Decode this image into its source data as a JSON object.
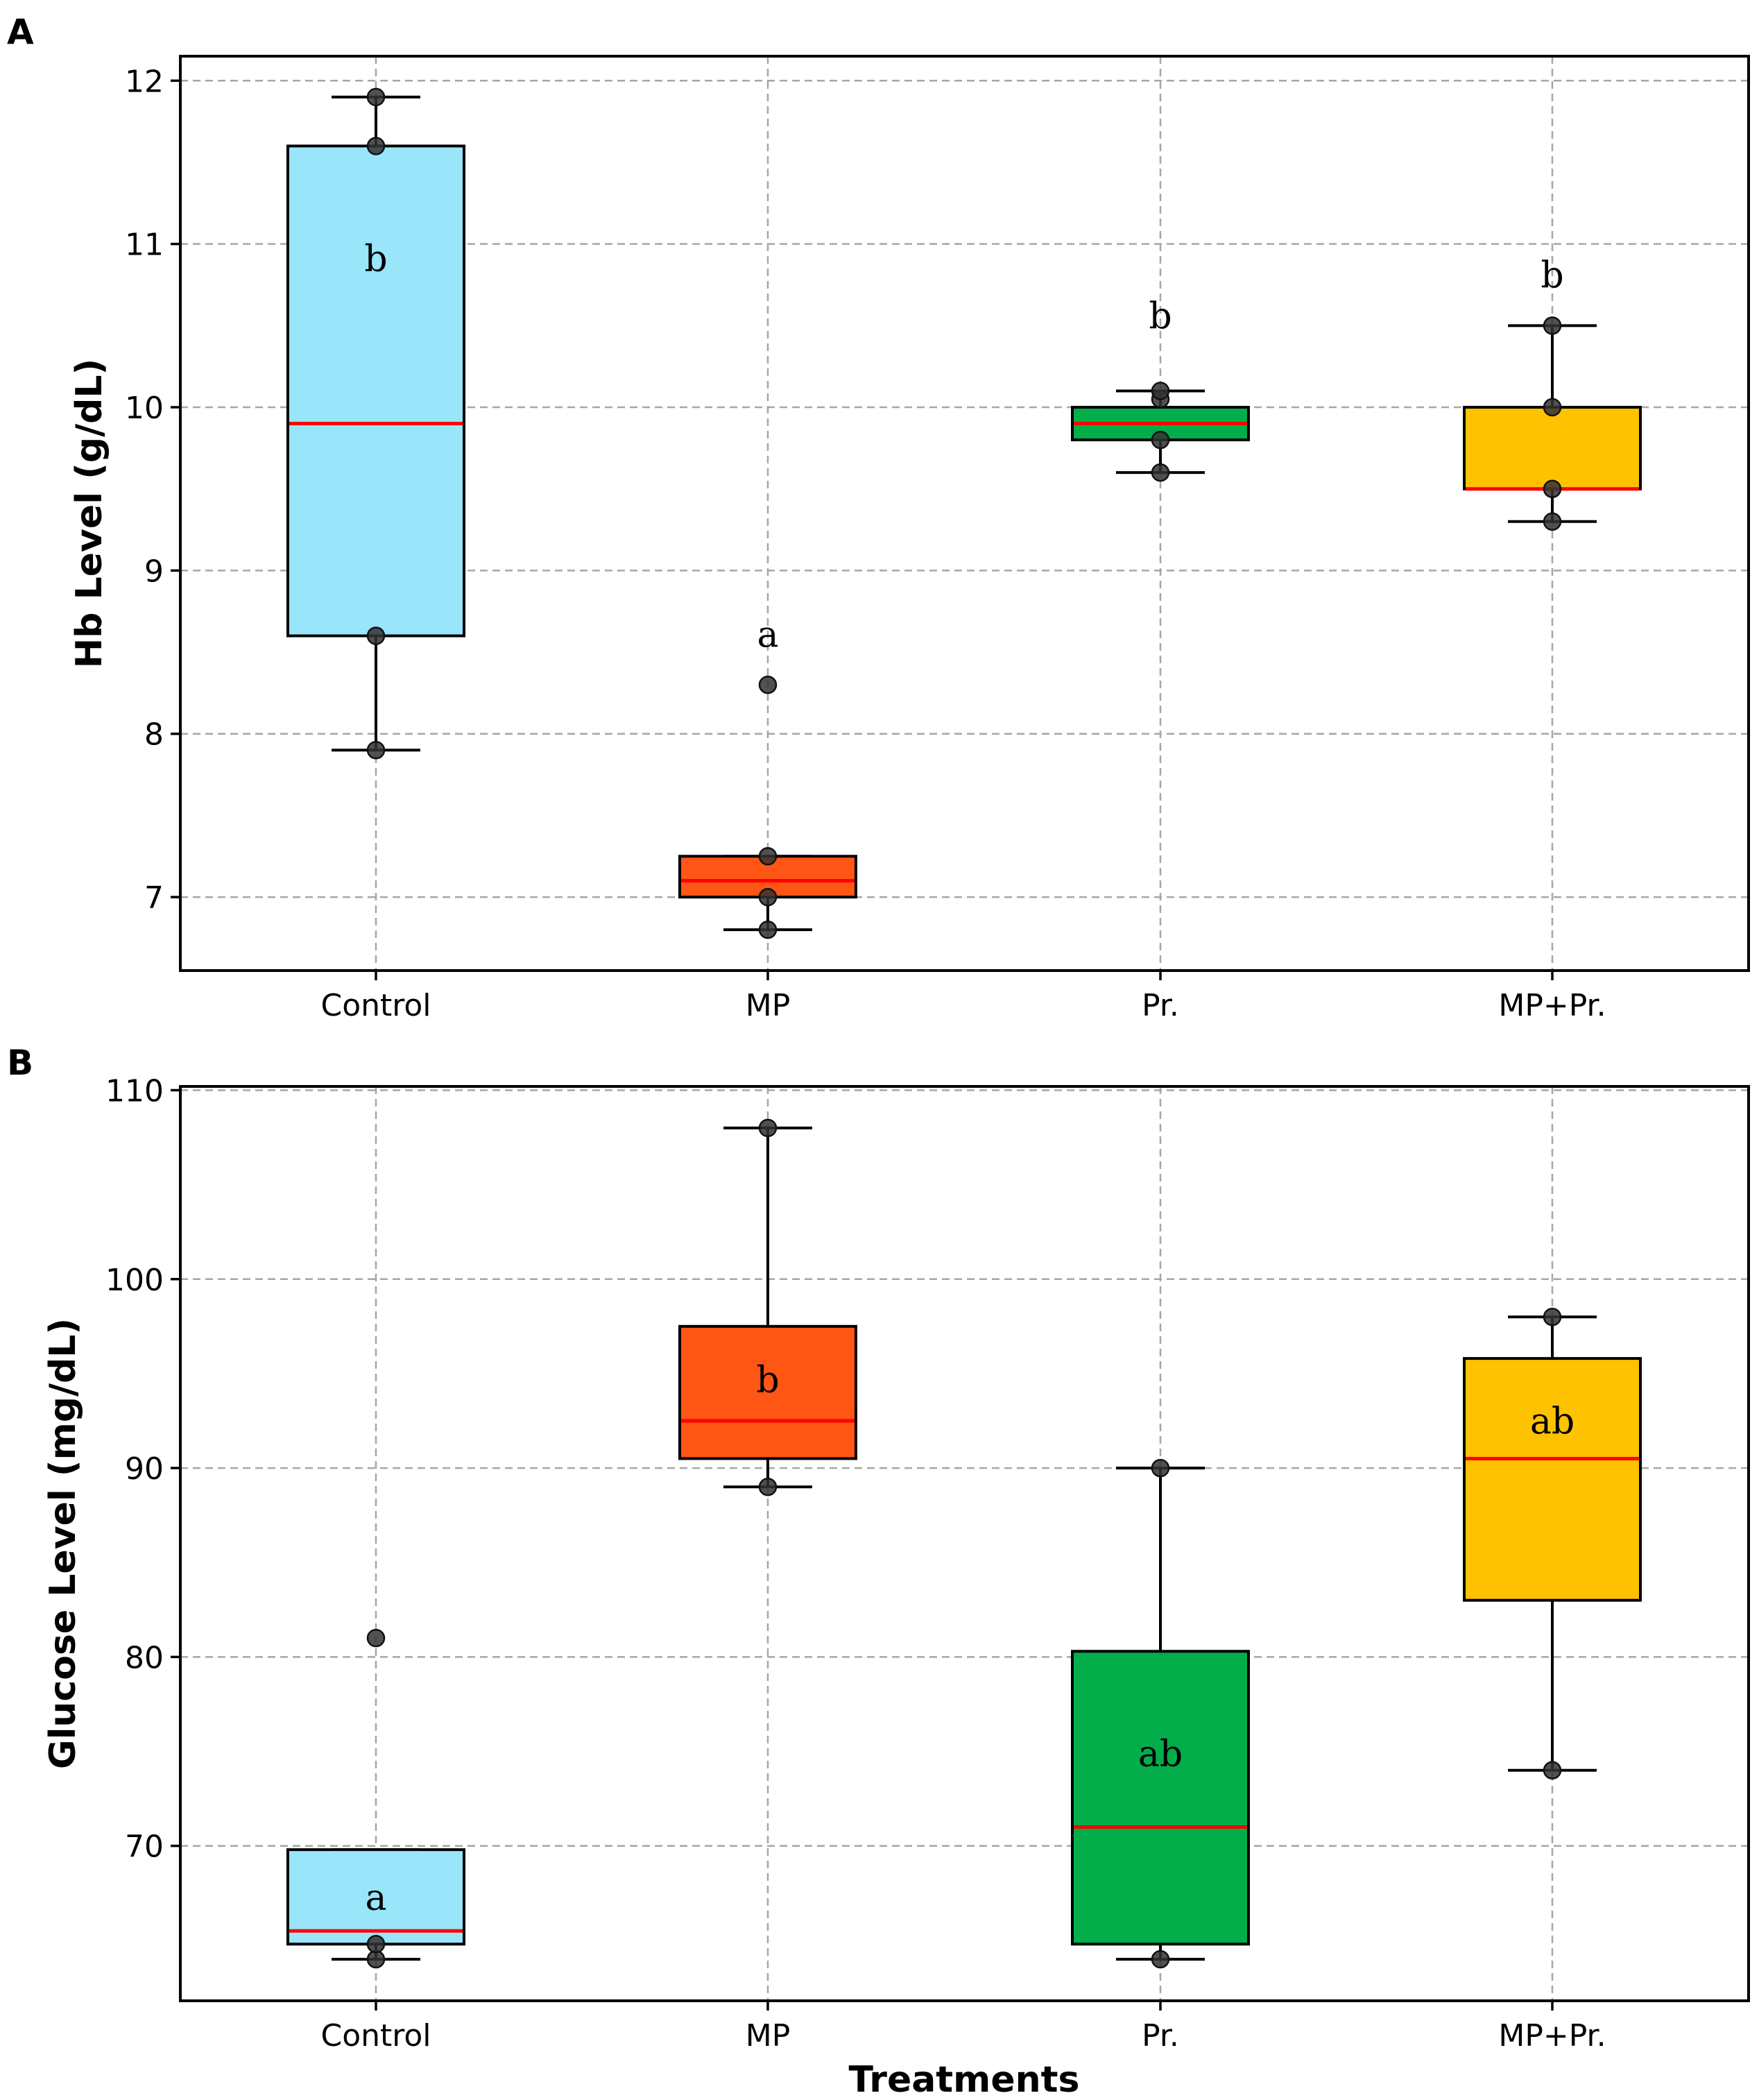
{
  "chart_data": [
    {
      "panel": "A",
      "type": "box",
      "ylabel": "Hb Level (g/dL)",
      "xlabel": "",
      "ylim": [
        6.55,
        12.15
      ],
      "yticks": [
        7,
        8,
        9,
        10,
        11,
        12
      ],
      "grid": true,
      "categories": [
        "Control",
        "MP",
        "Pr.",
        "MP+Pr."
      ],
      "boxes": [
        {
          "category": "Control",
          "color": "#99E5FA",
          "q1": 8.6,
          "median": 9.9,
          "q3": 11.6,
          "whisker_low": 7.9,
          "whisker_high": 11.9,
          "points": [
            7.9,
            8.6,
            11.6,
            11.9
          ],
          "outliers": [],
          "letter": "b",
          "letter_y": 10.9
        },
        {
          "category": "MP",
          "color": "#FF5515",
          "q1": 7.0,
          "median": 7.1,
          "q3": 7.25,
          "whisker_low": 6.8,
          "whisker_high": 7.25,
          "points": [
            6.8,
            7.0,
            7.25
          ],
          "outliers": [
            8.3
          ],
          "letter": "a",
          "letter_y": 8.6
        },
        {
          "category": "Pr.",
          "color": "#02AD4A",
          "q1": 9.8,
          "median": 9.9,
          "q3": 10.0,
          "whisker_low": 9.6,
          "whisker_high": 10.1,
          "points": [
            9.6,
            9.8,
            10.05,
            10.1
          ],
          "outliers": [],
          "letter": "b",
          "letter_y": 10.55
        },
        {
          "category": "MP+Pr.",
          "color": "#FFC200",
          "q1": 9.5,
          "median": 9.5,
          "q3": 10.0,
          "whisker_low": 9.3,
          "whisker_high": 10.5,
          "points": [
            9.3,
            9.5,
            10.0,
            10.5
          ],
          "outliers": [],
          "letter": "b",
          "letter_y": 10.8
        }
      ]
    },
    {
      "panel": "B",
      "type": "box",
      "ylabel": "Glucose Level (mg/dL)",
      "xlabel": "Treatments",
      "ylim": [
        61.8,
        110.2
      ],
      "yticks": [
        70,
        80,
        90,
        100,
        110
      ],
      "grid": true,
      "categories": [
        "Control",
        "MP",
        "Pr.",
        "MP+Pr."
      ],
      "boxes": [
        {
          "category": "Control",
          "color": "#99E5FA",
          "q1": 64.8,
          "median": 65.5,
          "q3": 69.8,
          "whisker_low": 64.0,
          "whisker_high": 69.8,
          "points": [
            64.0,
            64.8
          ],
          "outliers": [
            81.0
          ],
          "letter": "a",
          "letter_y": 67.2
        },
        {
          "category": "MP",
          "color": "#FF5515",
          "q1": 90.5,
          "median": 92.5,
          "q3": 97.5,
          "whisker_low": 89.0,
          "whisker_high": 108.0,
          "points": [
            89.0,
            108.0
          ],
          "outliers": [],
          "letter": "b",
          "letter_y": 94.6
        },
        {
          "category": "Pr.",
          "color": "#02AD4A",
          "q1": 64.8,
          "median": 71.0,
          "q3": 80.3,
          "whisker_low": 64.0,
          "whisker_high": 90.0,
          "points": [
            64.0,
            90.0
          ],
          "outliers": [],
          "letter": "ab",
          "letter_y": 74.8
        },
        {
          "category": "MP+Pr.",
          "color": "#FFC200",
          "q1": 83.0,
          "median": 90.5,
          "q3": 95.8,
          "whisker_low": 74.0,
          "whisker_high": 98.0,
          "points": [
            74.0,
            98.0
          ],
          "outliers": [],
          "letter": "ab",
          "letter_y": 92.4
        }
      ]
    }
  ],
  "colors": {
    "median_line": "#FF0000",
    "grid": "#A6A6A6",
    "point": "#333333"
  }
}
